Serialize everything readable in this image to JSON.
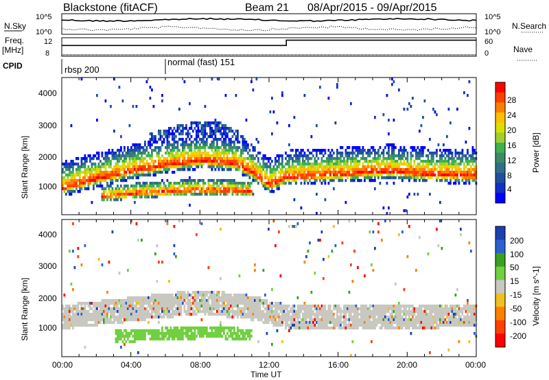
{
  "header": {
    "title": "Blackstone (fitACF)",
    "beam": "Beam 21",
    "dates": "08/Apr/2015 - 09/Apr/2015"
  },
  "top_panels": {
    "nsky_label": "N.Sky",
    "nsky_ticks": [
      "10^5",
      "10^0"
    ],
    "nsearch_label": "N.Search",
    "nsearch_ticks": [
      "10^5",
      "10^0"
    ],
    "freq_label": "Freq.",
    "freq_unit": "[MHz]",
    "freq_ticks": [
      "12",
      "8"
    ],
    "nave_label": "Nave",
    "nave_ticks": [
      "60",
      "0"
    ],
    "cpid_label": "CPID",
    "cpid_segments": [
      {
        "label": "rbsp 200",
        "start_hour": 0
      },
      {
        "label": "normal (fast) 151",
        "start_hour": 6
      }
    ],
    "freq_step": {
      "hour": 13,
      "low": 10.5,
      "high": 12.2
    }
  },
  "axes": {
    "ylabel": "Slant Range [km]",
    "yticks": [
      "4000",
      "3000",
      "2000",
      "1000"
    ],
    "xlabel": "Time UT",
    "xticks": [
      "00:00",
      "04:00",
      "08:00",
      "12:00",
      "16:00",
      "20:00",
      "00:00"
    ]
  },
  "colorbars": {
    "power": {
      "label": "Power [dB]",
      "ticks": [
        "28",
        "24",
        "20",
        "16",
        "12",
        "8",
        "4"
      ],
      "colors": [
        "#ff0000",
        "#ff4000",
        "#ff8000",
        "#ffbf00",
        "#d9e000",
        "#a0d030",
        "#40b050",
        "#3a8a6a",
        "#2f6f8a",
        "#2050a0",
        "#1030c8",
        "#0000ff"
      ]
    },
    "velocity": {
      "label": "Velocity [m s^-1]",
      "ticks": [
        "200",
        "100",
        "50",
        "15",
        "-15",
        "-50",
        "-100",
        "-200"
      ],
      "colors": [
        "#1e3fb0",
        "#2c60d0",
        "#3aa020",
        "#70d040",
        "#c8c8c0",
        "#f0c020",
        "#ff8000",
        "#ff4000",
        "#ff0000"
      ]
    }
  },
  "chart_data": [
    {
      "type": "heatmap",
      "title": "Power",
      "x_range_hours": [
        0,
        24
      ],
      "y_range_km": [
        0,
        4500
      ],
      "bands": [
        {
          "name": "main",
          "points": [
            [
              0,
              900
            ],
            [
              2,
              1200
            ],
            [
              4,
              1450
            ],
            [
              6,
              1650
            ],
            [
              8,
              1800
            ],
            [
              10,
              1700
            ],
            [
              11,
              1400
            ],
            [
              12,
              1000
            ],
            [
              13,
              1250
            ],
            [
              16,
              1350
            ],
            [
              19,
              1450
            ],
            [
              21,
              1350
            ],
            [
              24,
              1300
            ]
          ]
        },
        {
          "name": "lower",
          "points": [
            [
              2.2,
              620
            ],
            [
              4,
              720
            ],
            [
              6,
              800
            ],
            [
              8,
              850
            ],
            [
              10,
              820
            ],
            [
              11,
              800
            ]
          ]
        },
        {
          "name": "upper",
          "points": [
            [
              5,
              2500
            ],
            [
              7,
              2850
            ],
            [
              9,
              2900
            ],
            [
              10.5,
              2500
            ],
            [
              11.5,
              1800
            ]
          ]
        }
      ]
    },
    {
      "type": "heatmap",
      "title": "Velocity",
      "x_range_hours": [
        0,
        24
      ],
      "y_range_km": [
        0,
        4500
      ],
      "bands": [
        {
          "name": "ground",
          "points": [
            [
              0,
              1300
            ],
            [
              4,
              1550
            ],
            [
              8,
              1800
            ],
            [
              11,
              1600
            ],
            [
              13,
              1300
            ],
            [
              24,
              1350
            ]
          ]
        },
        {
          "name": "green",
          "points": [
            [
              3,
              650
            ],
            [
              6,
              750
            ],
            [
              9,
              800
            ],
            [
              11,
              700
            ]
          ]
        }
      ]
    }
  ]
}
